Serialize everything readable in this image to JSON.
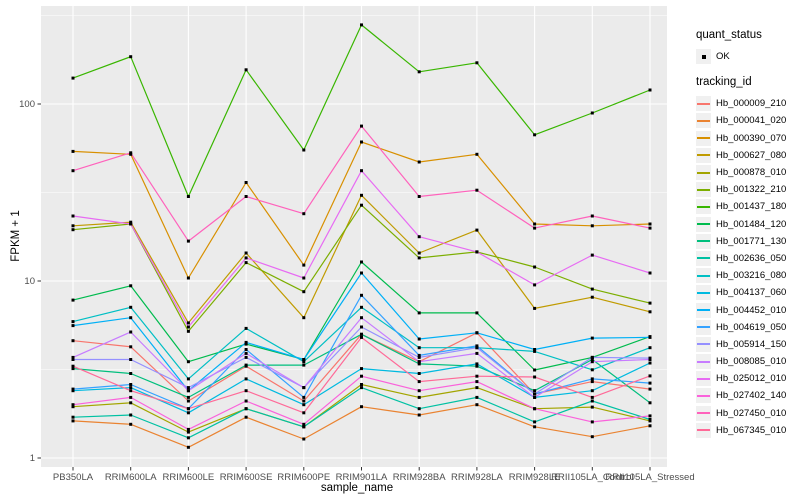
{
  "figure": {
    "background": "#FFFFFF",
    "panel_background": "#EBEBEB",
    "grid_color": "#FFFFFF",
    "tick_color": "#333333",
    "tick_label_color": "#4D4D4D",
    "axis_title_color": "#000000",
    "point_color": "#000000",
    "legend_key_background": "#F0F0F0"
  },
  "legend": {
    "quant_status_title": "quant_status",
    "quant_status_items": [
      {
        "label": "OK",
        "marker": "black-square-point"
      }
    ],
    "tracking_title": "tracking_id"
  },
  "chart_data": {
    "type": "line",
    "title": "",
    "xlabel": "sample_name",
    "ylabel": "FPKM + 1",
    "yscale": "log10",
    "grid": "on",
    "legend_position": "right",
    "ylim": [
      0.9,
      360
    ],
    "yticks": [
      {
        "label": "1",
        "value": 1
      },
      {
        "label": "10",
        "value": 10
      },
      {
        "label": "100",
        "value": 100
      }
    ],
    "yticks_minor": [
      3.162,
      31.623,
      316.23
    ],
    "categories": [
      "PB350LA",
      "RRIM600LA",
      "RRIM600LE",
      "RRIM600SE",
      "RRIM600PE",
      "RRIM901LA",
      "RRIM928BA",
      "RRIM928LA",
      "RRIM928LE",
      "RRII105LA_Control",
      "RRII105LA_Stressed"
    ],
    "point_shape": "square",
    "series": [
      {
        "name": "Hb_000009_210",
        "color": "#F8766D",
        "values": [
          4.6,
          4.25,
          2.1,
          3.3,
          2.1,
          5.0,
          3.5,
          5.1,
          2.3,
          2.7,
          2.45
        ]
      },
      {
        "name": "Hb_000041_020",
        "color": "#EA8331",
        "values": [
          1.62,
          1.55,
          1.15,
          1.7,
          1.28,
          1.95,
          1.75,
          2.0,
          1.5,
          1.32,
          1.52
        ]
      },
      {
        "name": "Hb_000390_070",
        "color": "#D89000",
        "values": [
          54,
          52,
          10.4,
          36,
          12.3,
          61,
          47,
          52,
          21,
          20.5,
          21
        ]
      },
      {
        "name": "Hb_000627_080",
        "color": "#C09B00",
        "values": [
          20.5,
          21.5,
          5.8,
          14.4,
          6.2,
          30.5,
          14.4,
          19.4,
          7.0,
          8.1,
          6.7
        ]
      },
      {
        "name": "Hb_000878_010",
        "color": "#A3A500",
        "values": [
          1.95,
          2.05,
          1.4,
          1.9,
          1.5,
          2.6,
          2.2,
          2.5,
          1.9,
          1.94,
          1.62
        ]
      },
      {
        "name": "Hb_001322_210",
        "color": "#7CAE00",
        "values": [
          19.5,
          21.0,
          5.2,
          12.7,
          8.7,
          26.8,
          13.5,
          14.6,
          12.0,
          9.0,
          7.5
        ]
      },
      {
        "name": "Hb_001437_180",
        "color": "#39B600",
        "values": [
          140,
          185,
          30,
          156,
          55,
          280,
          152,
          171,
          67,
          89,
          120
        ]
      },
      {
        "name": "Hb_001484_120",
        "color": "#00BB4E",
        "values": [
          7.8,
          9.4,
          3.5,
          4.4,
          3.6,
          12.8,
          6.6,
          6.6,
          3.14,
          3.7,
          4.85
        ]
      },
      {
        "name": "Hb_001771_130",
        "color": "#00BF7D",
        "values": [
          3.2,
          3.0,
          2.2,
          3.35,
          3.35,
          5.0,
          3.4,
          3.3,
          2.4,
          3.6,
          2.05
        ]
      },
      {
        "name": "Hb_002636_050",
        "color": "#00C1A3",
        "values": [
          1.7,
          1.75,
          1.3,
          1.9,
          1.5,
          2.5,
          1.9,
          2.2,
          1.6,
          2.1,
          1.65
        ]
      },
      {
        "name": "Hb_003216_080",
        "color": "#00BFC4",
        "values": [
          5.9,
          7.1,
          2.8,
          5.4,
          3.5,
          7.1,
          4.2,
          4.2,
          4.0,
          3.15,
          4.2
        ]
      },
      {
        "name": "Hb_004137_060",
        "color": "#00BAE0",
        "values": [
          2.4,
          2.5,
          1.8,
          2.8,
          2.0,
          3.2,
          3.0,
          3.4,
          2.2,
          2.4,
          3.44
        ]
      },
      {
        "name": "Hb_004452_010",
        "color": "#00B0F6",
        "values": [
          5.6,
          6.2,
          2.4,
          4.5,
          3.6,
          11.1,
          4.7,
          5.1,
          4.1,
          4.76,
          4.8
        ]
      },
      {
        "name": "Hb_004619_050",
        "color": "#35A2FF",
        "values": [
          2.45,
          2.6,
          1.9,
          4.1,
          2.2,
          8.3,
          3.8,
          4.3,
          2.3,
          2.8,
          2.65
        ]
      },
      {
        "name": "Hb_005914_150",
        "color": "#9590FF",
        "values": [
          3.6,
          3.6,
          2.5,
          3.7,
          2.5,
          5.5,
          3.7,
          4.2,
          2.3,
          3.7,
          3.67
        ]
      },
      {
        "name": "Hb_008085_010",
        "color": "#C77CFF",
        "values": [
          3.7,
          5.15,
          2.4,
          3.9,
          2.5,
          6.2,
          3.5,
          3.9,
          2.2,
          3.5,
          3.6
        ]
      },
      {
        "name": "Hb_025012_010",
        "color": "#E76BF3",
        "values": [
          23.3,
          21.0,
          5.5,
          13.5,
          10.4,
          42,
          17.8,
          14.6,
          9.5,
          14,
          11.1
        ]
      },
      {
        "name": "Hb_027402_140",
        "color": "#FA62DB",
        "values": [
          2.0,
          2.2,
          1.45,
          2.1,
          1.55,
          2.9,
          2.4,
          2.7,
          1.9,
          1.6,
          1.73
        ]
      },
      {
        "name": "Hb_027450_010",
        "color": "#FF62BC",
        "values": [
          42,
          53,
          16.8,
          30,
          24,
          75,
          30,
          32.6,
          19.9,
          23.3,
          19.9
        ]
      },
      {
        "name": "Hb_067345_010",
        "color": "#FF6A98",
        "values": [
          3.3,
          2.4,
          1.9,
          2.4,
          1.8,
          4.8,
          2.7,
          2.9,
          2.87,
          2.2,
          2.91
        ]
      }
    ]
  }
}
